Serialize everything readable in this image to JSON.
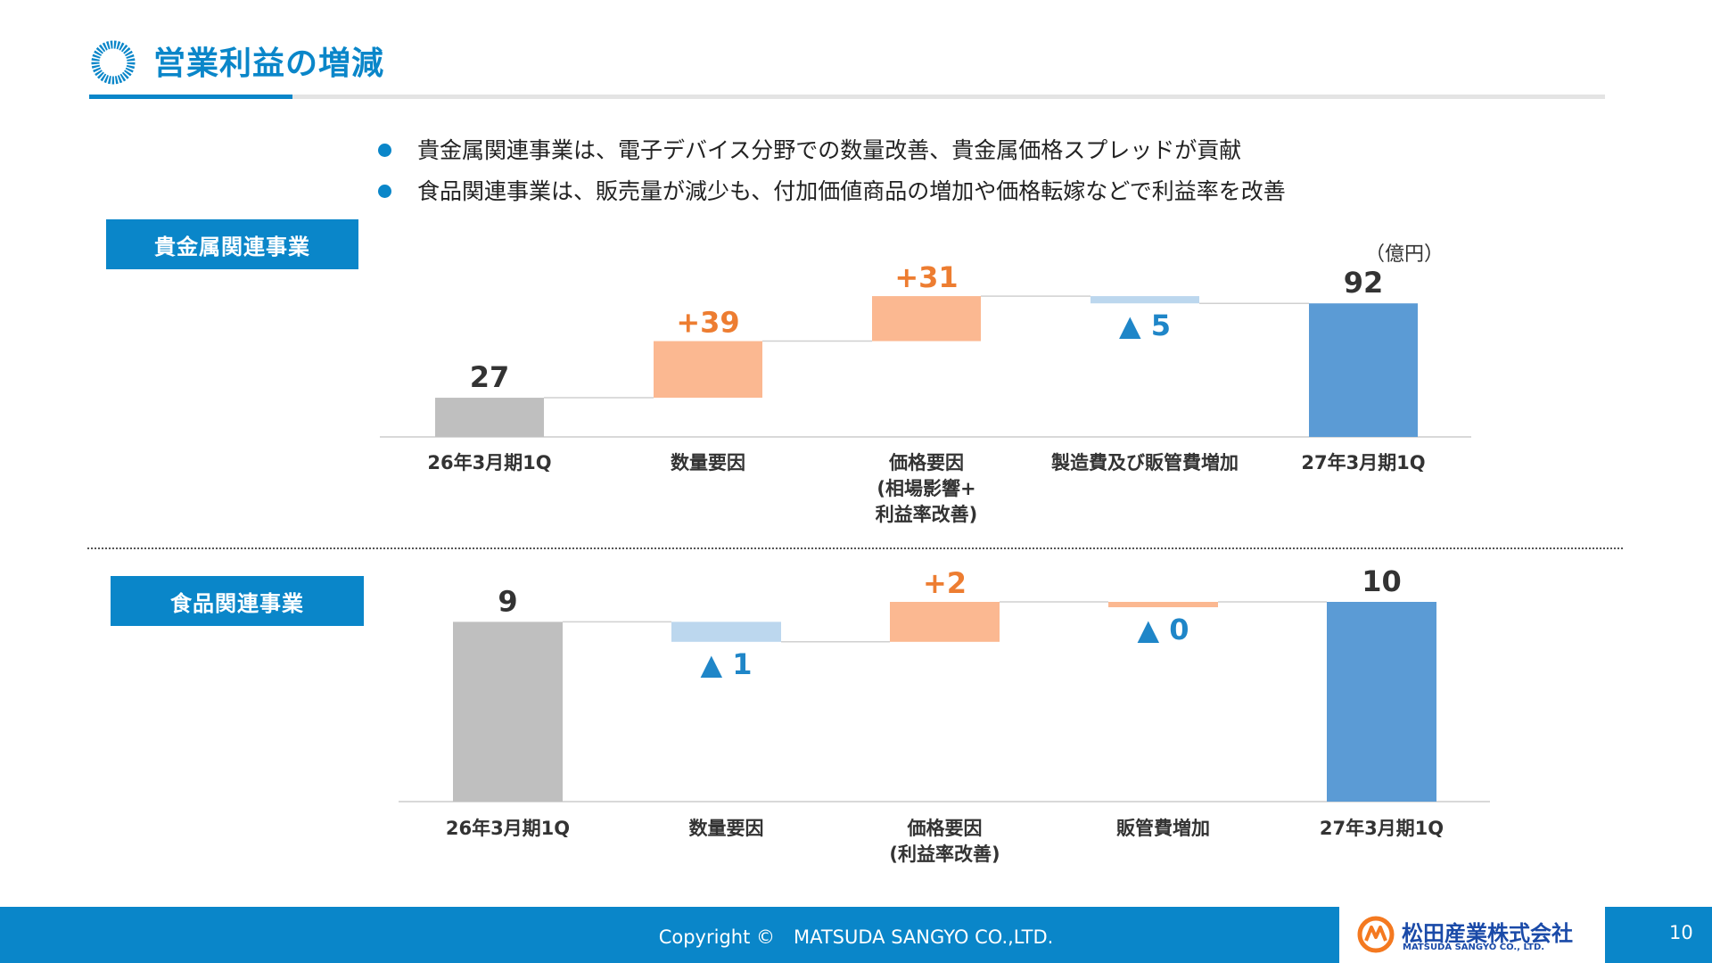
{
  "header": {
    "title": "営業利益の増減"
  },
  "bullets": [
    "貴金属関連事業は、電子デバイス分野での数量改善、貴金属価格スプレッドが貢献",
    "食品関連事業は、販売量が減少も、付加価値商品の増加や価格転嫁などで利益率を改善"
  ],
  "unit_label": "（億円）",
  "colors": {
    "accent": "#0a86c9",
    "total_start": "#bfbfbf",
    "increase": "#fbb891",
    "decrease": "#bcd7ee",
    "total_end": "#5b9bd5",
    "increase_text": "#ed7d31",
    "decrease_text": "#1f86c8"
  },
  "chart_data": [
    {
      "type": "bar",
      "subtype": "waterfall",
      "title": "貴金属関連事業",
      "categories": [
        [
          "26年3月期1Q"
        ],
        [
          "数量要因"
        ],
        [
          "価格要因",
          "(相場影響+",
          "利益率改善)"
        ],
        [
          "製造費及び販管費増加"
        ],
        [
          "27年3月期1Q"
        ]
      ],
      "values": [
        27,
        39,
        31,
        -5,
        92
      ],
      "kinds": [
        "total",
        "delta",
        "delta",
        "delta",
        "total"
      ],
      "labels": [
        "27",
        "+39",
        "+31",
        "▲ 5",
        "92"
      ]
    },
    {
      "type": "bar",
      "subtype": "waterfall",
      "title": "食品関連事業",
      "categories": [
        [
          "26年3月期1Q"
        ],
        [
          "数量要因"
        ],
        [
          "価格要因",
          "(利益率改善)"
        ],
        [
          "販管費増加"
        ],
        [
          "27年3月期1Q"
        ]
      ],
      "values": [
        9,
        -1,
        2,
        0,
        10
      ],
      "kinds": [
        "total",
        "delta",
        "delta",
        "delta",
        "total"
      ],
      "labels": [
        "9",
        "▲ 1",
        "+2",
        "▲ 0",
        "10"
      ]
    }
  ],
  "footer": {
    "copyright": "Copyright ©　MATSUDA SANGYO CO.,LTD.",
    "company_name": "松田産業株式会社",
    "company_name_en": "MATSUDA SANGYO CO., LTD.",
    "page_number": "10"
  }
}
